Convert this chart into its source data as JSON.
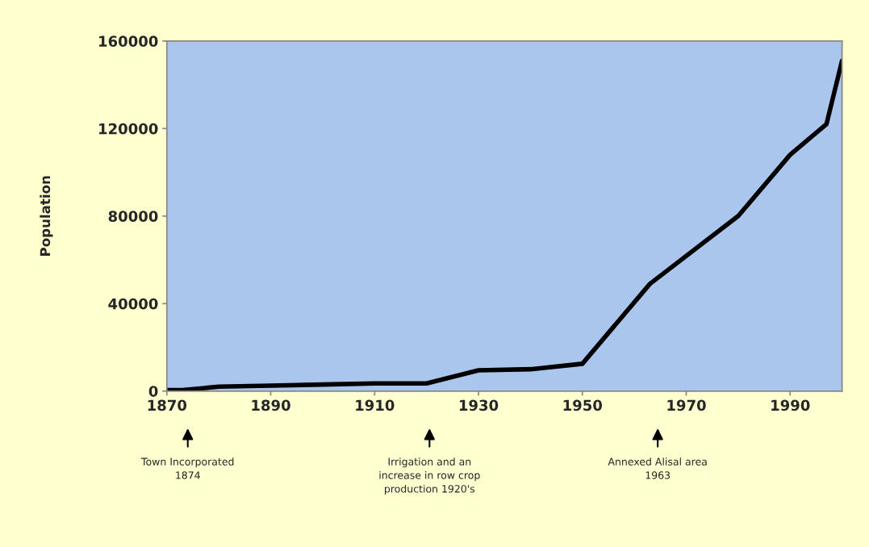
{
  "chart_data": {
    "type": "line",
    "ylabel": "Population",
    "x": [
      1870,
      1873,
      1880,
      1890,
      1900,
      1910,
      1920,
      1930,
      1940,
      1950,
      1963,
      1980,
      1990,
      1997,
      2000
    ],
    "series": [
      {
        "color": "#000000",
        "values": [
          500,
          500,
          2000,
          2500,
          3000,
          3500,
          3500,
          9500,
          10000,
          12500,
          49000,
          80000,
          108000,
          122000,
          151000
        ]
      }
    ],
    "xlim": [
      1870,
      2000
    ],
    "xticks": [
      1870,
      1890,
      1910,
      1930,
      1950,
      1970,
      1990
    ],
    "ylim": [
      0,
      160000
    ],
    "yticks": [
      0,
      40000,
      80000,
      120000,
      160000
    ],
    "grid": false,
    "legend": false,
    "marker": "none",
    "line_style": "solid",
    "annotations": [
      "Town Incorporated\n1874",
      "Irrigation and an\nincrease in row crop\nproduction 1920's",
      "Annexed Alisal area\n1963"
    ]
  }
}
